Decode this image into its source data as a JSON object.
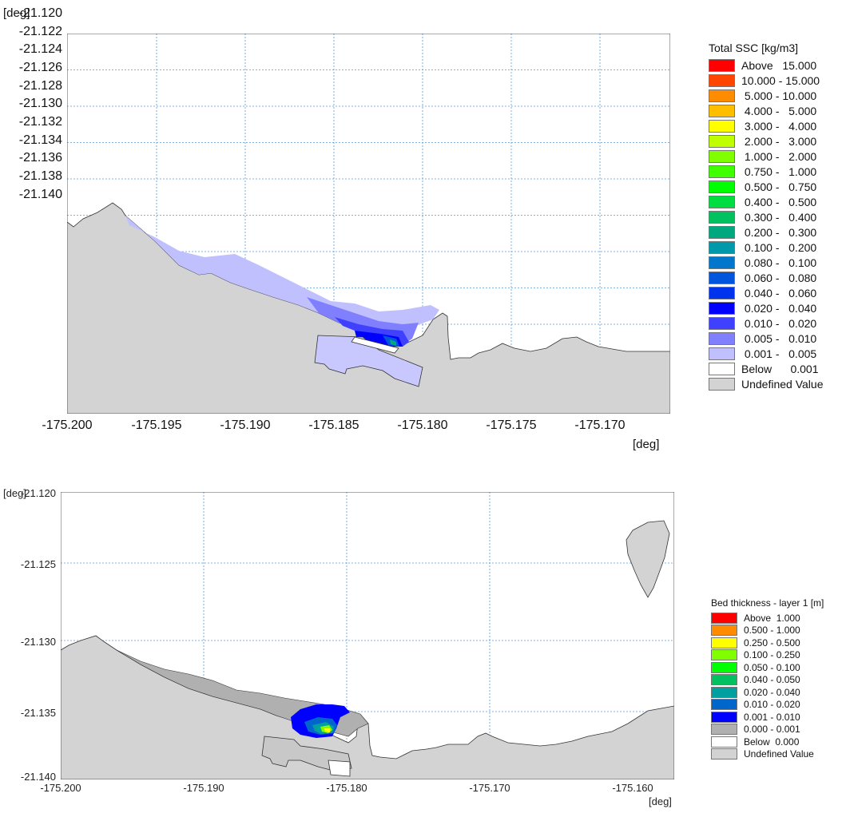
{
  "top_map": {
    "y_unit": "[deg]",
    "x_unit": "[deg]",
    "y_ticks": [
      "-21.120",
      "-21.122",
      "-21.124",
      "-21.126",
      "-21.128",
      "-21.130",
      "-21.132",
      "-21.134",
      "-21.136",
      "-21.138",
      "-21.140"
    ],
    "x_ticks": [
      "-175.200",
      "-175.195",
      "-175.190",
      "-175.185",
      "-175.180",
      "-175.175",
      "-175.170"
    ],
    "legend": {
      "title": "Total SSC [kg/m3]",
      "items": [
        {
          "label": "Above   15.000",
          "color": "#ff0000"
        },
        {
          "label": "10.000 - 15.000",
          "color": "#ff4500"
        },
        {
          "label": " 5.000 - 10.000",
          "color": "#ff8c00"
        },
        {
          "label": " 4.000 -   5.000",
          "color": "#ffbf00"
        },
        {
          "label": " 3.000 -   4.000",
          "color": "#ffff00"
        },
        {
          "label": " 2.000 -   3.000",
          "color": "#bfff00"
        },
        {
          "label": " 1.000 -   2.000",
          "color": "#80ff00"
        },
        {
          "label": " 0.750 -   1.000",
          "color": "#40ff00"
        },
        {
          "label": " 0.500 -   0.750",
          "color": "#00ff00"
        },
        {
          "label": " 0.400 -   0.500",
          "color": "#00dd40"
        },
        {
          "label": " 0.300 -   0.400",
          "color": "#00c060"
        },
        {
          "label": " 0.200 -   0.300",
          "color": "#00a880"
        },
        {
          "label": " 0.100 -   0.200",
          "color": "#0099aa"
        },
        {
          "label": " 0.080 -   0.100",
          "color": "#0077cc"
        },
        {
          "label": " 0.060 -   0.080",
          "color": "#0055dd"
        },
        {
          "label": " 0.040 -   0.060",
          "color": "#0033ee"
        },
        {
          "label": " 0.020 -   0.040",
          "color": "#0000ff"
        },
        {
          "label": " 0.010 -   0.020",
          "color": "#4040ff"
        },
        {
          "label": " 0.005 -   0.010",
          "color": "#8080ff"
        },
        {
          "label": " 0.001 -   0.005",
          "color": "#c0c0ff"
        },
        {
          "label": "Below      0.001",
          "color": "#ffffff"
        },
        {
          "label": "Undefined Value",
          "color": "#d3d3d3"
        }
      ]
    }
  },
  "bottom_map": {
    "y_unit": "[deg]",
    "x_unit": "[deg]",
    "y_ticks": [
      "-21.120",
      "-21.125",
      "-21.130",
      "-21.135",
      "-21.140"
    ],
    "x_ticks": [
      "-175.200",
      "-175.190",
      "-175.180",
      "-175.170",
      "-175.160"
    ],
    "legend": {
      "title": "Bed thickness - layer 1 [m]",
      "items": [
        {
          "label": "Above  1.000",
          "color": "#ff0000"
        },
        {
          "label": "0.500 - 1.000",
          "color": "#ff8c00"
        },
        {
          "label": "0.250 - 0.500",
          "color": "#ffff00"
        },
        {
          "label": "0.100 - 0.250",
          "color": "#80ff00"
        },
        {
          "label": "0.050 - 0.100",
          "color": "#00ff00"
        },
        {
          "label": "0.040 - 0.050",
          "color": "#00c060"
        },
        {
          "label": "0.020 - 0.040",
          "color": "#00a0a0"
        },
        {
          "label": "0.010 - 0.020",
          "color": "#0066cc"
        },
        {
          "label": "0.001 - 0.010",
          "color": "#0000ff"
        },
        {
          "label": "0.000 - 0.001",
          "color": "#b0b0b0"
        },
        {
          "label": "Below  0.000",
          "color": "#ffffff"
        },
        {
          "label": "Undefined Value",
          "color": "#d3d3d3"
        }
      ]
    }
  },
  "colors": {
    "land": "#d3d3d3",
    "grid": "#5a9bd5",
    "plume_light": "#c0c0ff",
    "plume_mid": "#8080ff",
    "plume_dark": "#3030ff",
    "plume_core": "#0000ff"
  }
}
